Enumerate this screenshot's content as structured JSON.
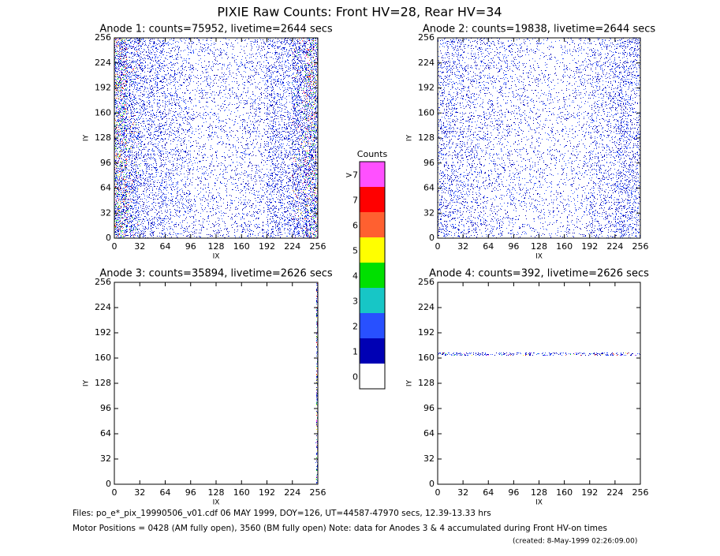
{
  "title": "PIXIE Raw Counts:  Front HV=28, Rear HV=34",
  "notes": [
    "Files: po_e*_pix_19990506_v01.cdf    06 MAY 1999, DOY=126, UT=44587-47970 secs, 12.39-13.33 hrs",
    "Motor Positions = 0428 (AM fully open), 3560 (BM fully open)    Note: data for Anodes 3 & 4 accumulated during Front HV-on times",
    "(created:  8-May-1999 02:26:09.00)"
  ],
  "chart_data": [
    {
      "type": "heatmap",
      "title": "Anode 1: counts=75952, livetime=2644 secs",
      "xlabel": "IX",
      "ylabel": "IY",
      "xlim": [
        0,
        256
      ],
      "ylim": [
        0,
        256
      ],
      "xticks": [
        0,
        32,
        64,
        96,
        128,
        160,
        192,
        224,
        256
      ],
      "yticks": [
        0,
        32,
        64,
        96,
        128,
        160,
        192,
        224,
        256
      ],
      "xbins": [
        0,
        16,
        32,
        64,
        96,
        128,
        160,
        192,
        224,
        240,
        256
      ],
      "values": [
        0.75,
        0.45,
        0.28,
        0.2,
        0.13,
        0.12,
        0.16,
        0.3,
        0.5,
        0.7
      ]
    },
    {
      "type": "heatmap",
      "title": "Anode 2: counts=19838, livetime=2644 secs",
      "xlabel": "IX",
      "ylabel": "IY",
      "xlim": [
        0,
        256
      ],
      "ylim": [
        0,
        256
      ],
      "xticks": [
        0,
        32,
        64,
        96,
        128,
        160,
        192,
        224,
        256
      ],
      "yticks": [
        0,
        32,
        64,
        96,
        128,
        160,
        192,
        224,
        256
      ],
      "xbins": [
        0,
        32,
        64,
        96,
        128,
        160,
        192,
        224,
        256
      ],
      "values": [
        0.25,
        0.18,
        0.15,
        0.12,
        0.1,
        0.12,
        0.2,
        0.3
      ]
    },
    {
      "type": "heatmap",
      "title": "Anode 3: counts=35894, livetime=2626 secs",
      "xlabel": "IX",
      "ylabel": "IY",
      "xlim": [
        0,
        256
      ],
      "ylim": [
        0,
        256
      ],
      "xticks": [
        0,
        32,
        64,
        96,
        128,
        160,
        192,
        224,
        256
      ],
      "yticks": [
        0,
        32,
        64,
        96,
        128,
        160,
        192,
        224,
        256
      ],
      "xbins": [
        0,
        254,
        256
      ],
      "values": [
        0,
        0.9
      ]
    },
    {
      "type": "heatmap",
      "title": "Anode 4: counts=392, livetime=2626 secs",
      "xlabel": "IX",
      "ylabel": "IY",
      "xlim": [
        0,
        256
      ],
      "ylim": [
        0,
        256
      ],
      "xticks": [
        0,
        32,
        64,
        96,
        128,
        160,
        192,
        224,
        256
      ],
      "yticks": [
        0,
        32,
        64,
        96,
        128,
        160,
        192,
        224,
        256
      ],
      "ybins": [
        0,
        163,
        167,
        256
      ],
      "values": [
        0,
        0.5,
        0
      ]
    },
    {
      "type": "colorbar",
      "title": "Counts",
      "categories": [
        "0",
        "1",
        "2",
        "3",
        "4",
        "5",
        "6",
        "7",
        ">7"
      ],
      "colors": [
        "#ffffff",
        "#0000b4",
        "#2850ff",
        "#17c6c6",
        "#00e000",
        "#ffff00",
        "#ff6030",
        "#ff0000",
        "#ff50ff"
      ]
    }
  ]
}
